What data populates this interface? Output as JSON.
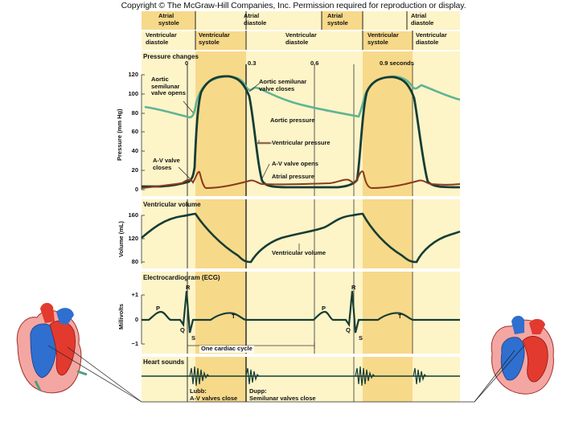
{
  "copyright": "Copyright © The McGraw-Hill Companies, Inc. Permission required for reproduction or display.",
  "atrial_phases": [
    "Atrial systole",
    "Atrial diastole",
    "Atrial systole",
    "Atrial diastole"
  ],
  "ventricular_phases": [
    "Ventricular diastole",
    "Ventricular systole",
    "Ventricular diastole",
    "Ventricular systole",
    "Ventricular diastole"
  ],
  "pressure": {
    "title": "Pressure changes",
    "time_labels": [
      "0",
      "0.3",
      "0.6",
      "0.9 seconds"
    ],
    "y_axis_label": "Pressure (mm Hg)",
    "y_ticks": [
      "120",
      "100",
      "80",
      "60",
      "40",
      "20",
      "0"
    ],
    "annotations": {
      "aortic_opens": "Aortic semilunar valve opens",
      "aortic_closes": "Aortic semilunar valve closes",
      "aortic_pressure": "Aortic pressure",
      "ventricular_pressure": "Ventricular pressure",
      "av_closes": "A-V valve closes",
      "av_opens": "A-V valve opens",
      "atrial_pressure": "Atrial pressure"
    }
  },
  "volume": {
    "title": "Ventricular volume",
    "y_axis_label": "Volume (mL)",
    "y_ticks": [
      "160",
      "120",
      "80"
    ],
    "curve_label": "Ventricular volume"
  },
  "ecg": {
    "title": "Electrocardiogram (ECG)",
    "y_axis_label": "Millivolts",
    "y_ticks": [
      "+1",
      "0",
      "−1"
    ],
    "wave_labels": [
      "P",
      "R",
      "Q",
      "S",
      "T",
      "P",
      "R",
      "Q",
      "S",
      "T"
    ],
    "cycle_label": "One cardiac cycle"
  },
  "heart_sounds": {
    "title": "Heart sounds",
    "lubb": "Lubb:",
    "lubb_desc": "A-V valves close",
    "dupp": "Dupp:",
    "dupp_desc": "Semilunar valves close"
  },
  "colors": {
    "systole_band": "#f7d98a",
    "panel_bg": "#fdf4c8",
    "aortic": "#5fb493",
    "ventricular": "#163d35",
    "atrial": "#8a3a1c",
    "heart_red": "#e23a2e",
    "heart_blue": "#2e6fd0"
  }
}
